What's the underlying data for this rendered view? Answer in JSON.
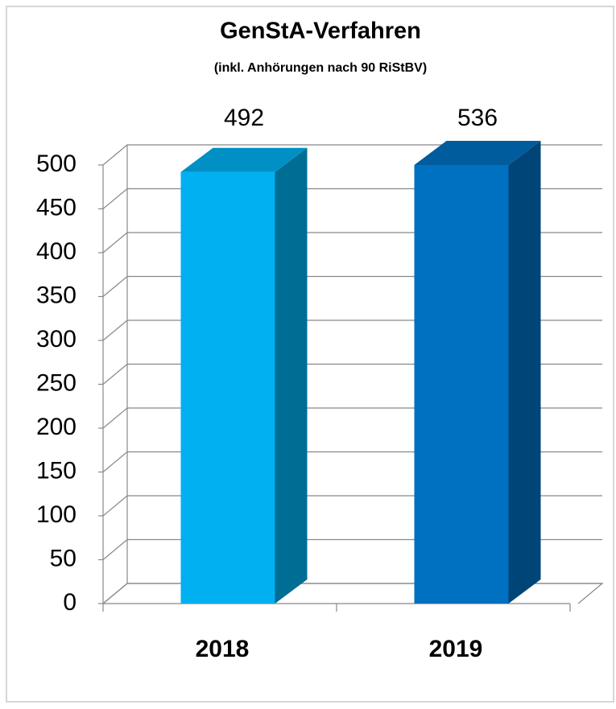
{
  "chart_data": {
    "type": "bar3d",
    "title": "GenStA-Verfahren",
    "subtitle": "(inkl. Anhörungen nach 90 RiStBV)",
    "categories": [
      "2018",
      "2019"
    ],
    "values": [
      492,
      536
    ],
    "colors": [
      "#00b0f0",
      "#0070c0"
    ],
    "ylim": [
      0,
      500
    ],
    "yticks": [
      0,
      50,
      100,
      150,
      200,
      250,
      300,
      350,
      400,
      450,
      500
    ],
    "grid": true
  }
}
